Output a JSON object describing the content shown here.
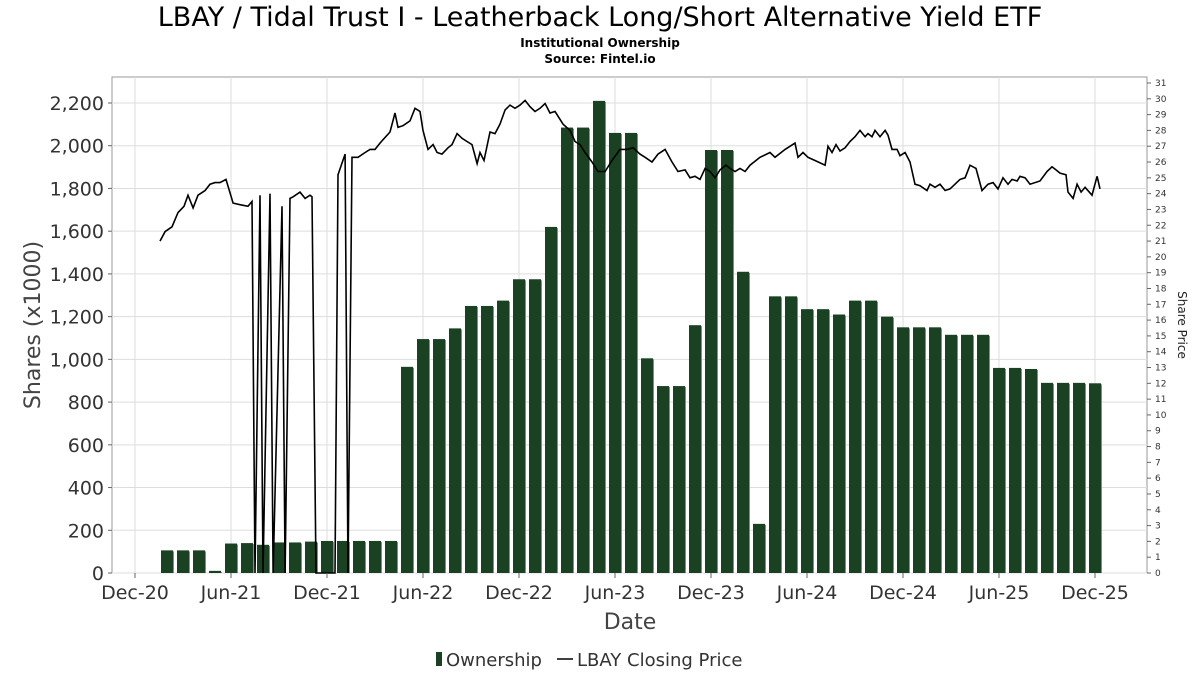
{
  "chart_data": {
    "type": "bar+line",
    "title": "LBAY / Tidal Trust I - Leatherback Long/Short Alternative Yield ETF",
    "subtitle": "Institutional Ownership",
    "source": "Source: Fintel.io",
    "xlabel": "Date",
    "ylabel": "Shares (x1000)",
    "y2label": "Share Price",
    "ylim": [
      0,
      2200
    ],
    "y2lim": [
      0,
      31
    ],
    "grid": true,
    "legend_position": "bottom",
    "x_tick_labels": [
      "Dec-20",
      "Jun-21",
      "Dec-21",
      "Jun-22",
      "Dec-22",
      "Jun-23",
      "Dec-23",
      "Jun-24",
      "Dec-24",
      "Jun-25",
      "Dec-25"
    ],
    "y_tick_labels": [
      "0",
      "200",
      "400",
      "600",
      "800",
      "1,000",
      "1,200",
      "1,400",
      "1,600",
      "1,800",
      "2,000",
      "2,200"
    ],
    "y2_tick_labels": [
      "0",
      "1",
      "2",
      "3",
      "4",
      "5",
      "6",
      "7",
      "8",
      "9",
      "10",
      "11",
      "12",
      "13",
      "14",
      "15",
      "16",
      "17",
      "18",
      "19",
      "20",
      "21",
      "22",
      "23",
      "24",
      "25",
      "26",
      "27",
      "28",
      "29",
      "30",
      "31"
    ],
    "legend": [
      {
        "name": "Ownership",
        "color": "#1a4222"
      },
      {
        "name": "LBAY Closing Price",
        "color": "#000000"
      }
    ],
    "series": [
      {
        "name": "Ownership",
        "type": "bar",
        "x_unit": "months since Dec-20",
        "start_month": 2,
        "values": [
          106,
          106,
          106,
          10,
          138,
          140,
          132,
          143,
          143,
          147,
          150,
          150,
          150,
          150,
          150,
          965,
          1095,
          1095,
          1145,
          1250,
          1250,
          1275,
          1375,
          1375,
          1620,
          2085,
          2085,
          2210,
          2060,
          2060,
          1005,
          875,
          875,
          1160,
          1980,
          1980,
          1410,
          230,
          1295,
          1295,
          1235,
          1235,
          1210,
          1275,
          1275,
          1200,
          1150,
          1150,
          1150,
          1115,
          1115,
          1115,
          960,
          960,
          955,
          890,
          890,
          890,
          888
        ]
      },
      {
        "name": "LBAY Closing Price",
        "type": "line",
        "x_unit": "months since Dec-20",
        "points": [
          [
            1.56,
            21.0
          ],
          [
            1.88,
            21.6
          ],
          [
            2.31,
            21.9
          ],
          [
            2.69,
            22.8
          ],
          [
            3.06,
            23.2
          ],
          [
            3.31,
            23.9
          ],
          [
            3.63,
            23.1
          ],
          [
            3.94,
            23.9
          ],
          [
            4.38,
            24.2
          ],
          [
            4.69,
            24.6
          ],
          [
            5.0,
            24.7
          ],
          [
            5.31,
            24.7
          ],
          [
            5.69,
            24.9
          ],
          [
            6.13,
            23.4
          ],
          [
            6.56,
            23.3
          ],
          [
            7.06,
            23.2
          ],
          [
            7.31,
            23.5
          ],
          [
            7.5,
            0
          ],
          [
            7.81,
            23.9
          ],
          [
            8.0,
            0
          ],
          [
            8.44,
            24.0
          ],
          [
            8.63,
            0
          ],
          [
            9.19,
            23.2
          ],
          [
            9.38,
            0
          ],
          [
            9.69,
            23.7
          ],
          [
            9.88,
            23.8
          ],
          [
            10.31,
            24.1
          ],
          [
            10.63,
            23.7
          ],
          [
            10.94,
            23.9
          ],
          [
            11.06,
            23.8
          ],
          [
            11.31,
            0
          ],
          [
            12.5,
            0
          ],
          [
            12.69,
            25.2
          ],
          [
            13.13,
            26.5
          ],
          [
            13.31,
            0
          ],
          [
            13.56,
            26.3
          ],
          [
            13.94,
            26.3
          ],
          [
            14.38,
            26.6
          ],
          [
            14.69,
            26.8
          ],
          [
            15.0,
            26.8
          ],
          [
            15.31,
            27.2
          ],
          [
            15.94,
            27.9
          ],
          [
            16.25,
            29.1
          ],
          [
            16.44,
            28.2
          ],
          [
            16.75,
            28.3
          ],
          [
            17.19,
            28.6
          ],
          [
            17.5,
            29.4
          ],
          [
            17.81,
            29.2
          ],
          [
            18.0,
            28.0
          ],
          [
            18.31,
            26.8
          ],
          [
            18.63,
            27.1
          ],
          [
            18.88,
            26.6
          ],
          [
            19.19,
            26.5
          ],
          [
            19.56,
            26.9
          ],
          [
            19.81,
            27.1
          ],
          [
            20.13,
            27.8
          ],
          [
            20.44,
            27.5
          ],
          [
            20.75,
            27.3
          ],
          [
            21.06,
            27.1
          ],
          [
            21.38,
            25.9
          ],
          [
            21.56,
            26.6
          ],
          [
            21.81,
            26.1
          ],
          [
            22.19,
            27.9
          ],
          [
            22.5,
            27.8
          ],
          [
            22.81,
            28.4
          ],
          [
            23.13,
            29.3
          ],
          [
            23.44,
            29.6
          ],
          [
            23.75,
            29.4
          ],
          [
            24.06,
            29.6
          ],
          [
            24.38,
            29.9
          ],
          [
            24.69,
            29.5
          ],
          [
            25.0,
            29.2
          ],
          [
            25.31,
            29.4
          ],
          [
            25.63,
            29.7
          ],
          [
            25.94,
            29.1
          ],
          [
            26.25,
            29.2
          ],
          [
            26.75,
            28.4
          ],
          [
            27.19,
            28.0
          ],
          [
            27.5,
            27.3
          ],
          [
            27.81,
            27.1
          ],
          [
            28.13,
            26.6
          ],
          [
            28.56,
            26.0
          ],
          [
            28.94,
            25.4
          ],
          [
            29.38,
            25.4
          ],
          [
            29.81,
            26.1
          ],
          [
            30.31,
            26.8
          ],
          [
            30.75,
            26.8
          ],
          [
            31.13,
            26.9
          ],
          [
            31.56,
            26.5
          ],
          [
            31.88,
            26.3
          ],
          [
            32.31,
            26.0
          ],
          [
            32.69,
            26.5
          ],
          [
            33.13,
            26.8
          ],
          [
            33.56,
            26.0
          ],
          [
            33.94,
            25.4
          ],
          [
            34.38,
            25.5
          ],
          [
            34.69,
            25.0
          ],
          [
            35.0,
            25.1
          ],
          [
            35.31,
            24.9
          ],
          [
            35.63,
            25.6
          ],
          [
            35.94,
            25.4
          ],
          [
            36.25,
            25.0
          ],
          [
            36.56,
            25.5
          ],
          [
            36.94,
            25.8
          ],
          [
            37.19,
            25.6
          ],
          [
            37.5,
            25.4
          ],
          [
            37.81,
            25.6
          ],
          [
            38.13,
            25.4
          ],
          [
            38.44,
            25.8
          ],
          [
            39.06,
            26.3
          ],
          [
            39.69,
            26.6
          ],
          [
            40.0,
            26.3
          ],
          [
            40.63,
            26.8
          ],
          [
            41.25,
            27.2
          ],
          [
            41.44,
            26.3
          ],
          [
            41.75,
            26.6
          ],
          [
            42.06,
            26.3
          ],
          [
            42.5,
            26.1
          ],
          [
            43.13,
            25.8
          ],
          [
            43.31,
            27.0
          ],
          [
            43.56,
            26.6
          ],
          [
            43.81,
            27.1
          ],
          [
            44.06,
            26.7
          ],
          [
            44.38,
            26.9
          ],
          [
            44.69,
            27.3
          ],
          [
            45.0,
            27.6
          ],
          [
            45.31,
            28.0
          ],
          [
            45.63,
            27.6
          ],
          [
            45.81,
            27.8
          ],
          [
            46.06,
            27.6
          ],
          [
            46.25,
            28.0
          ],
          [
            46.56,
            27.6
          ],
          [
            46.88,
            28.0
          ],
          [
            47.06,
            27.7
          ],
          [
            47.31,
            26.8
          ],
          [
            47.63,
            26.8
          ],
          [
            47.81,
            26.4
          ],
          [
            48.13,
            26.6
          ],
          [
            48.44,
            26.0
          ],
          [
            48.75,
            24.6
          ],
          [
            49.06,
            24.5
          ],
          [
            49.5,
            24.2
          ],
          [
            49.69,
            24.6
          ],
          [
            50.0,
            24.4
          ],
          [
            50.31,
            24.6
          ],
          [
            50.63,
            24.2
          ],
          [
            50.94,
            24.3
          ],
          [
            51.25,
            24.6
          ],
          [
            51.56,
            24.9
          ],
          [
            51.88,
            25.0
          ],
          [
            52.19,
            25.8
          ],
          [
            52.56,
            25.6
          ],
          [
            52.94,
            24.2
          ],
          [
            53.31,
            24.6
          ],
          [
            53.63,
            24.7
          ],
          [
            53.94,
            24.3
          ],
          [
            54.25,
            25.0
          ],
          [
            54.56,
            24.6
          ],
          [
            54.81,
            24.9
          ],
          [
            55.13,
            24.8
          ],
          [
            55.31,
            25.1
          ],
          [
            55.63,
            25.0
          ],
          [
            55.94,
            24.6
          ],
          [
            56.56,
            24.8
          ],
          [
            57.0,
            25.4
          ],
          [
            57.31,
            25.7
          ],
          [
            57.56,
            25.5
          ],
          [
            57.81,
            25.3
          ],
          [
            58.19,
            25.2
          ],
          [
            58.31,
            24.1
          ],
          [
            58.63,
            23.7
          ],
          [
            58.88,
            24.6
          ],
          [
            59.13,
            24.1
          ],
          [
            59.38,
            24.4
          ],
          [
            59.81,
            23.9
          ],
          [
            60.13,
            25.1
          ],
          [
            60.31,
            24.3
          ]
        ]
      }
    ]
  }
}
